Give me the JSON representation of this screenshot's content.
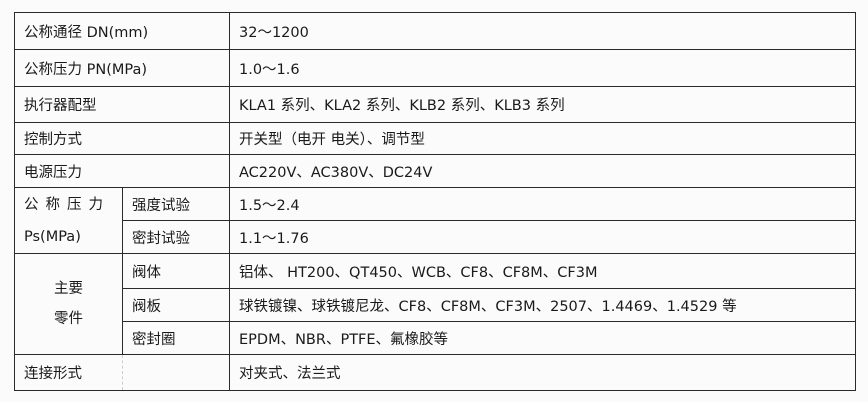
{
  "rows": {
    "dn": {
      "label": "公称通径 DN(mm)",
      "value": "32～1200"
    },
    "pn": {
      "label": "公称压力 PN(MPa)",
      "value": "1.0～1.6"
    },
    "actuator": {
      "label": "执行器配型",
      "value": "KLA1 系列、KLA2 系列、KLB2 系列、KLB3 系列"
    },
    "control": {
      "label": "控制方式",
      "value": "开关型（电开  电关）、调节型"
    },
    "power": {
      "label": "电源压力",
      "value": "AC220V、AC380V、DC24V"
    },
    "ps": {
      "label_line1": "公称压力",
      "label_line2": "Ps(MPa)",
      "strength": {
        "label": "强度试验",
        "value": "1.5～2.4"
      },
      "seal": {
        "label": "密封试验",
        "value": "1.1～1.76"
      }
    },
    "parts": {
      "label_line1": "主要",
      "label_line2": "零件",
      "body": {
        "label": "阀体",
        "value": "铝体、 HT200、QT450、WCB、CF8、CF8M、CF3M"
      },
      "disc": {
        "label": "阀板",
        "value": "球铁镀镍、球铁镀尼龙、CF8、CF8M、CF3M、2507、1.4469、1.4529 等"
      },
      "seal_ring": {
        "label": "密封圈",
        "value": "EPDM、NBR、PTFE、氟橡胶等"
      }
    },
    "connection": {
      "label": "连接形式",
      "value": "对夹式、法兰式"
    }
  }
}
